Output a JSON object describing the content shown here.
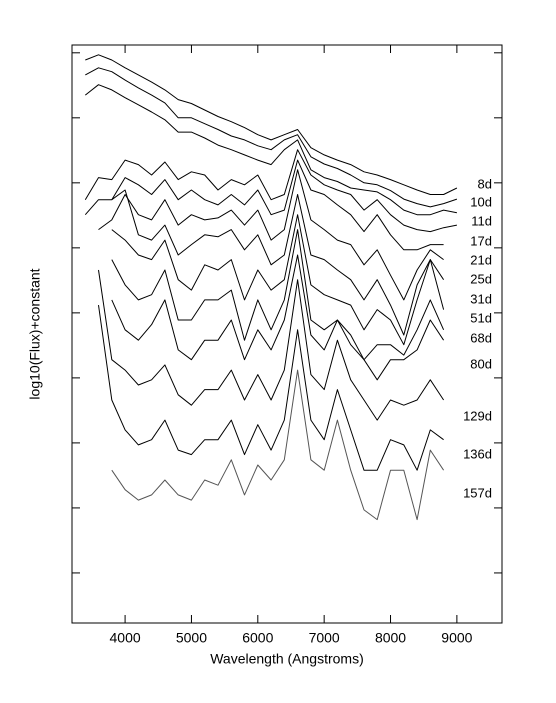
{
  "chart_data": {
    "type": "line",
    "xlabel": "Wavelength (Angstroms)",
    "ylabel": "log10(Flux)+constant",
    "xlim": [
      3200,
      9680
    ],
    "ylim": [
      -0.77,
      8.12
    ],
    "xticks": [
      4000,
      5000,
      6000,
      7000,
      8000,
      9000
    ],
    "yticks": [
      0,
      1,
      2,
      3,
      4,
      5,
      6,
      7,
      8
    ],
    "x": [
      3400,
      3600,
      3800,
      4000,
      4200,
      4400,
      4600,
      4800,
      5000,
      5200,
      5400,
      5600,
      5800,
      6000,
      6200,
      6400,
      6600,
      6800,
      7000,
      7200,
      7400,
      7600,
      7800,
      8000,
      8200,
      8400,
      8600,
      8800,
      9000,
      9200
    ],
    "series": [
      {
        "name": "8d",
        "color": "#000000",
        "values": [
          7.89,
          7.97,
          7.89,
          7.77,
          7.66,
          7.55,
          7.43,
          7.28,
          7.22,
          7.12,
          7.02,
          6.94,
          6.85,
          6.74,
          6.66,
          6.74,
          6.82,
          6.54,
          6.43,
          6.35,
          6.28,
          6.17,
          6.12,
          6.05,
          5.97,
          5.89,
          5.82,
          5.82,
          5.92,
          null
        ]
      },
      {
        "name": "10d",
        "color": "#000000",
        "values": [
          7.66,
          7.77,
          7.71,
          7.58,
          7.46,
          7.35,
          7.23,
          7.0,
          7.0,
          6.91,
          6.82,
          6.72,
          6.66,
          6.57,
          6.51,
          6.66,
          6.74,
          6.4,
          6.29,
          6.22,
          6.12,
          6.0,
          5.97,
          5.88,
          5.75,
          5.68,
          5.63,
          5.68,
          5.75,
          null
        ]
      },
      {
        "name": "11d",
        "color": "#000000",
        "values": [
          7.35,
          7.51,
          7.43,
          7.31,
          7.2,
          7.09,
          6.97,
          6.78,
          6.78,
          6.69,
          6.58,
          6.51,
          6.43,
          6.35,
          6.28,
          6.51,
          6.66,
          6.2,
          6.08,
          6.02,
          5.92,
          5.89,
          5.86,
          5.74,
          5.58,
          5.51,
          5.51,
          5.58,
          5.54,
          null
        ]
      },
      {
        "name": "17d",
        "color": "#000000",
        "values": [
          5.74,
          6.08,
          6.05,
          6.35,
          6.28,
          6.12,
          6.32,
          6.05,
          6.17,
          6.12,
          5.89,
          6.05,
          5.97,
          6.12,
          5.74,
          5.82,
          6.51,
          6.12,
          5.97,
          5.89,
          5.82,
          5.58,
          5.74,
          5.51,
          5.35,
          5.28,
          5.25,
          5.31,
          5.35,
          null
        ]
      },
      {
        "name": "21d",
        "color": "#000000",
        "values": [
          5.51,
          5.74,
          5.74,
          6.08,
          5.97,
          5.82,
          6.05,
          5.74,
          5.89,
          5.74,
          5.66,
          5.82,
          5.66,
          5.89,
          5.51,
          5.58,
          6.35,
          5.89,
          5.82,
          5.66,
          5.51,
          5.25,
          5.51,
          5.2,
          4.97,
          4.97,
          5.05,
          5.05,
          null,
          null
        ]
      },
      {
        "name": "25d",
        "color": "#000000",
        "values": [
          null,
          5.28,
          5.43,
          5.82,
          5.51,
          5.43,
          5.74,
          5.35,
          5.51,
          5.43,
          5.46,
          5.58,
          5.35,
          5.58,
          5.12,
          5.28,
          6.2,
          5.43,
          5.28,
          5.12,
          5.05,
          4.74,
          4.97,
          4.58,
          4.2,
          4.66,
          4.97,
          4.82,
          null,
          null
        ]
      },
      {
        "name": "31d",
        "color": "#000000",
        "values": [
          null,
          null,
          5.74,
          5.89,
          5.2,
          5.12,
          5.35,
          4.89,
          5.05,
          5.2,
          5.17,
          5.28,
          4.97,
          5.2,
          4.74,
          4.89,
          5.82,
          4.89,
          4.82,
          4.66,
          4.51,
          4.2,
          4.51,
          4.12,
          3.66,
          4.43,
          4.82,
          4.51,
          null,
          null
        ]
      },
      {
        "name": "51d",
        "color": "#000000",
        "values": [
          null,
          null,
          5.28,
          5.12,
          4.89,
          4.82,
          5.12,
          4.51,
          4.35,
          4.74,
          4.66,
          4.82,
          4.2,
          4.66,
          4.35,
          4.51,
          5.51,
          4.43,
          4.28,
          4.2,
          4.12,
          3.74,
          4.05,
          3.89,
          3.51,
          4.2,
          4.82,
          4.05,
          null,
          null
        ]
      },
      {
        "name": "68d",
        "color": "#000000",
        "values": [
          null,
          null,
          4.82,
          4.43,
          4.2,
          4.28,
          4.66,
          3.89,
          3.89,
          4.2,
          4.2,
          4.35,
          3.58,
          4.2,
          3.74,
          4.2,
          5.28,
          3.89,
          3.74,
          3.89,
          3.66,
          3.28,
          3.51,
          3.51,
          3.35,
          3.74,
          4.2,
          3.74,
          null,
          null
        ]
      },
      {
        "name": "80d",
        "color": "#000000",
        "values": [
          null,
          null,
          4.2,
          3.74,
          3.58,
          3.82,
          4.2,
          3.43,
          3.28,
          3.58,
          3.58,
          3.89,
          3.28,
          3.74,
          3.43,
          3.89,
          4.89,
          3.66,
          3.43,
          3.89,
          3.51,
          3.28,
          2.97,
          3.28,
          3.28,
          3.43,
          3.89,
          3.58,
          null,
          null
        ]
      },
      {
        "name": "129d",
        "color": "#000000",
        "values": [
          null,
          4.66,
          3.28,
          3.12,
          2.89,
          2.97,
          3.2,
          2.74,
          2.58,
          2.82,
          2.82,
          3.12,
          2.66,
          3.05,
          2.66,
          3.12,
          4.51,
          3.05,
          2.82,
          3.58,
          2.97,
          2.66,
          2.35,
          2.66,
          2.58,
          2.66,
          2.97,
          2.66,
          null,
          null
        ]
      },
      {
        "name": "136d",
        "color": "#000000",
        "values": [
          null,
          4.12,
          2.66,
          2.2,
          1.97,
          2.05,
          2.35,
          1.89,
          1.82,
          2.05,
          2.05,
          2.35,
          1.82,
          2.28,
          1.89,
          2.35,
          3.74,
          2.35,
          2.05,
          2.82,
          2.2,
          1.58,
          1.58,
          2.05,
          1.97,
          1.58,
          2.2,
          2.05,
          null,
          null
        ]
      },
      {
        "name": "157d",
        "color": "#555555",
        "values": [
          null,
          null,
          1.58,
          1.28,
          1.12,
          1.2,
          1.43,
          1.2,
          1.12,
          1.43,
          1.35,
          1.74,
          1.2,
          1.66,
          1.43,
          1.74,
          3.12,
          1.74,
          1.58,
          2.35,
          1.58,
          0.97,
          0.82,
          1.58,
          1.58,
          0.82,
          1.89,
          1.58,
          null,
          null
        ]
      }
    ]
  }
}
